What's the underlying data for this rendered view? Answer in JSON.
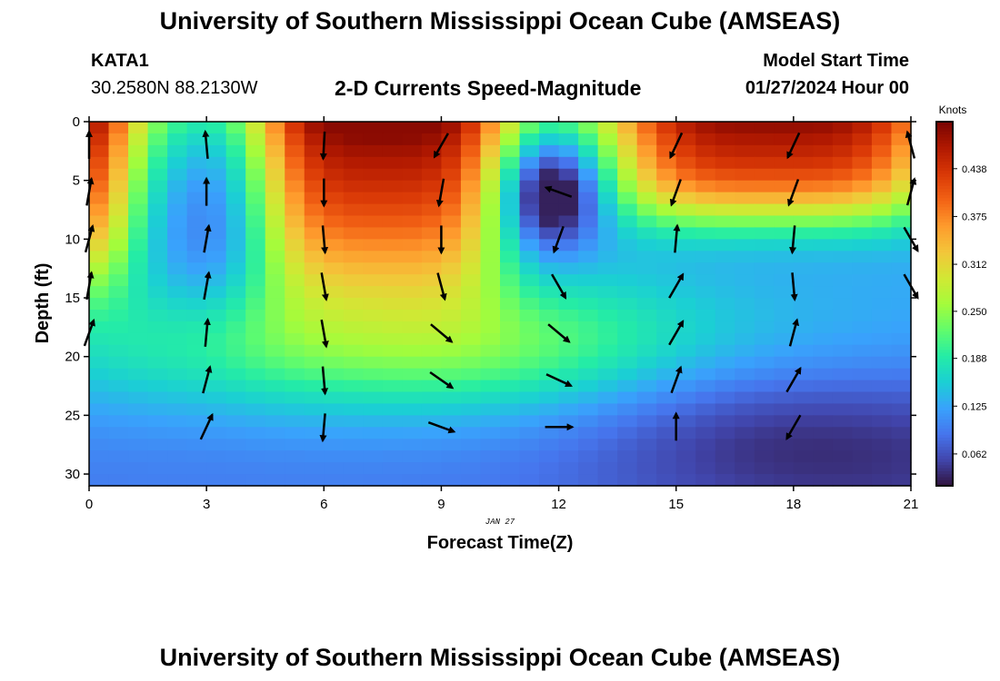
{
  "header": {
    "title": "University of Southern Mississippi Ocean Cube (AMSEAS)",
    "station": "KATA1",
    "coords": "30.2580N  88.2130W",
    "subtitle": "2-D Currents Speed-Magnitude",
    "start_label": "Model Start Time",
    "start_value": "01/27/2024 Hour 00",
    "footer_title": "University of Southern Mississippi Ocean Cube (AMSEAS)"
  },
  "colors": {
    "scale": [
      "#30123b",
      "#4145ab",
      "#4675ed",
      "#39a2fc",
      "#1bcfd4",
      "#24eca6",
      "#61fc6c",
      "#a4fc3b",
      "#d1e834",
      "#f3c63a",
      "#fe9b2d",
      "#f36315",
      "#d93806",
      "#b11901",
      "#7a0402"
    ],
    "arrow": "#000000",
    "frame": "#000000"
  },
  "chart_data": {
    "type": "heatmap",
    "title": "2-D Currents Speed-Magnitude",
    "xlabel": "Forecast Time(Z)",
    "ylabel": "Depth (ft)",
    "date_label": "JAN 27",
    "x_ticks": [
      0,
      3,
      6,
      9,
      12,
      15,
      18,
      21
    ],
    "y_ticks": [
      0,
      5,
      10,
      15,
      20,
      25,
      30
    ],
    "xlim": [
      0,
      21
    ],
    "ylim": [
      0,
      31
    ],
    "y_inverted": true,
    "colorbar": {
      "label": "Knots",
      "ticks": [
        0.062,
        0.125,
        0.188,
        0.25,
        0.312,
        0.375,
        0.438
      ],
      "min": 0.02,
      "max": 0.5
    },
    "arrow_times": [
      0,
      3,
      6,
      9,
      12,
      15,
      18,
      21
    ],
    "arrow_depths": [
      2,
      6,
      10,
      14,
      18,
      22,
      26
    ],
    "arrow_angles_deg": [
      [
        -90,
        -95,
        93,
        120,
        null,
        115,
        115,
        -105
      ],
      [
        -80,
        -90,
        90,
        100,
        -160,
        110,
        110,
        -75
      ],
      [
        -75,
        -80,
        85,
        90,
        110,
        -85,
        95,
        60
      ],
      [
        -80,
        -80,
        80,
        75,
        60,
        -60,
        85,
        60
      ],
      [
        -70,
        -85,
        80,
        40,
        40,
        -60,
        -75,
        null
      ],
      [
        null,
        -75,
        85,
        35,
        25,
        -70,
        -60,
        null
      ],
      [
        null,
        -65,
        95,
        20,
        0,
        -90,
        120,
        null
      ]
    ]
  }
}
